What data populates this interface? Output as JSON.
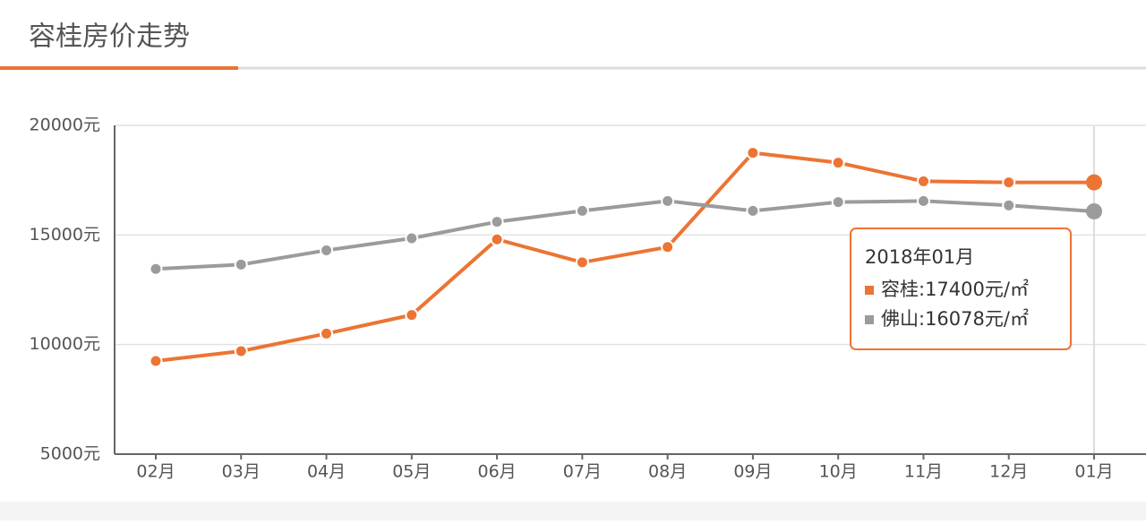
{
  "chart_data": {
    "type": "line",
    "title": "容桂房价走势",
    "categories": [
      "02月",
      "03月",
      "04月",
      "05月",
      "06月",
      "07月",
      "08月",
      "09月",
      "10月",
      "11月",
      "12月",
      "01月"
    ],
    "series": [
      {
        "color": "#ec7434",
        "values": [
          9250,
          9700,
          10500,
          11350,
          14800,
          13750,
          14450,
          18750,
          18300,
          17450,
          17400,
          17400
        ]
      },
      {
        "color": "#9b9b9b",
        "values": [
          13450,
          13650,
          14300,
          14850,
          15600,
          16100,
          16550,
          16100,
          16500,
          16550,
          16350,
          16078
        ]
      }
    ],
    "ylim": [
      5000,
      20000
    ],
    "yticks": [
      {
        "value": 5000,
        "label": "5000元"
      },
      {
        "value": 10000,
        "label": "10000元"
      },
      {
        "value": 15000,
        "label": "15000元"
      },
      {
        "value": 20000,
        "label": "20000元"
      }
    ],
    "grid": true,
    "tooltip": {
      "title": "2018年01月",
      "lines": [
        "容桂:17400元/㎡",
        "佛山:16078元/㎡"
      ]
    }
  }
}
